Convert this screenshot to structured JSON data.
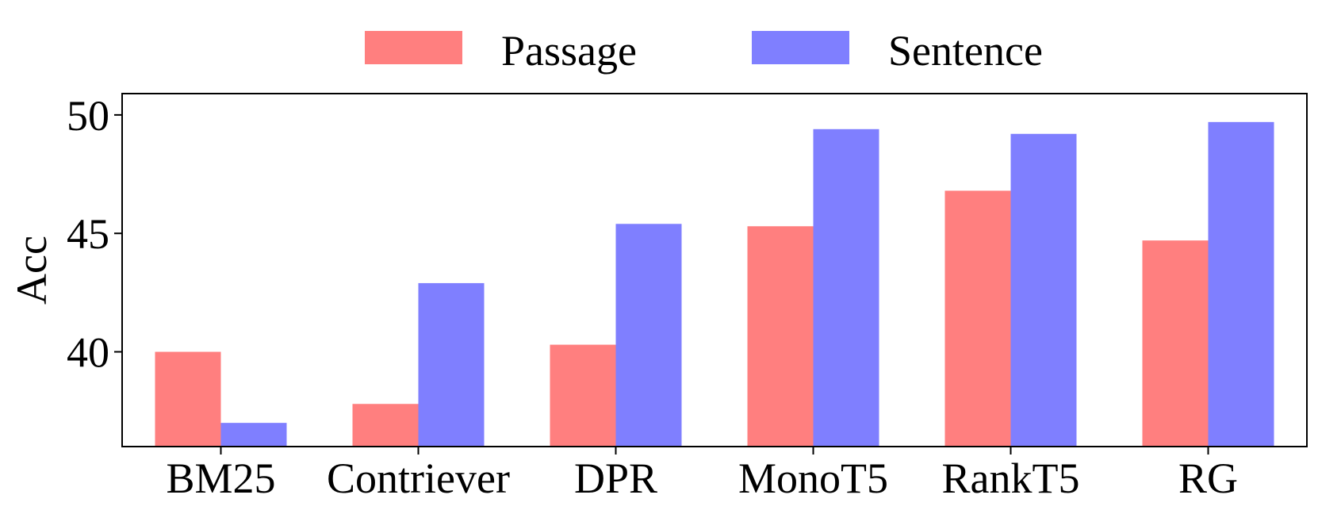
{
  "chart_data": {
    "type": "bar",
    "categories": [
      "BM25",
      "Contriever",
      "DPR",
      "MonoT5",
      "RankT5",
      "RG"
    ],
    "series": [
      {
        "name": "Passage",
        "values": [
          40.0,
          37.8,
          40.3,
          45.3,
          46.8,
          44.7
        ],
        "color": "#ff7f7f"
      },
      {
        "name": "Sentence",
        "values": [
          37.0,
          42.9,
          45.4,
          49.4,
          49.2,
          49.7
        ],
        "color": "#7f7fff"
      }
    ],
    "title": "",
    "xlabel": "",
    "ylabel": "Acc",
    "ylim": [
      36.0,
      50.9
    ],
    "yticks": [
      40,
      45,
      50
    ],
    "grid": false,
    "legend_position": "top-center"
  }
}
